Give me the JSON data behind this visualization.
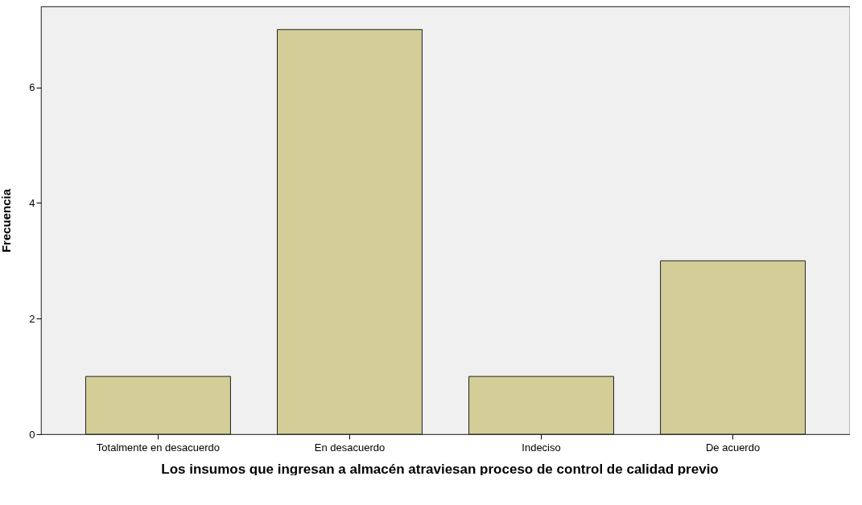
{
  "chart_data": {
    "type": "bar",
    "xlabel": "Los insumos que ingresan a almacén atraviesan proceso de control de calidad previo",
    "ylabel": "Frecuencia",
    "categories": [
      "Totalmente en desacuerdo",
      "En desacuerdo",
      "Indeciso",
      "De acuerdo"
    ],
    "values": [
      1,
      7,
      1,
      3
    ],
    "color": "#d3ce97",
    "ylim": [
      0,
      7.4
    ],
    "yticks": [
      0,
      2,
      4,
      6
    ],
    "grid": false
  }
}
